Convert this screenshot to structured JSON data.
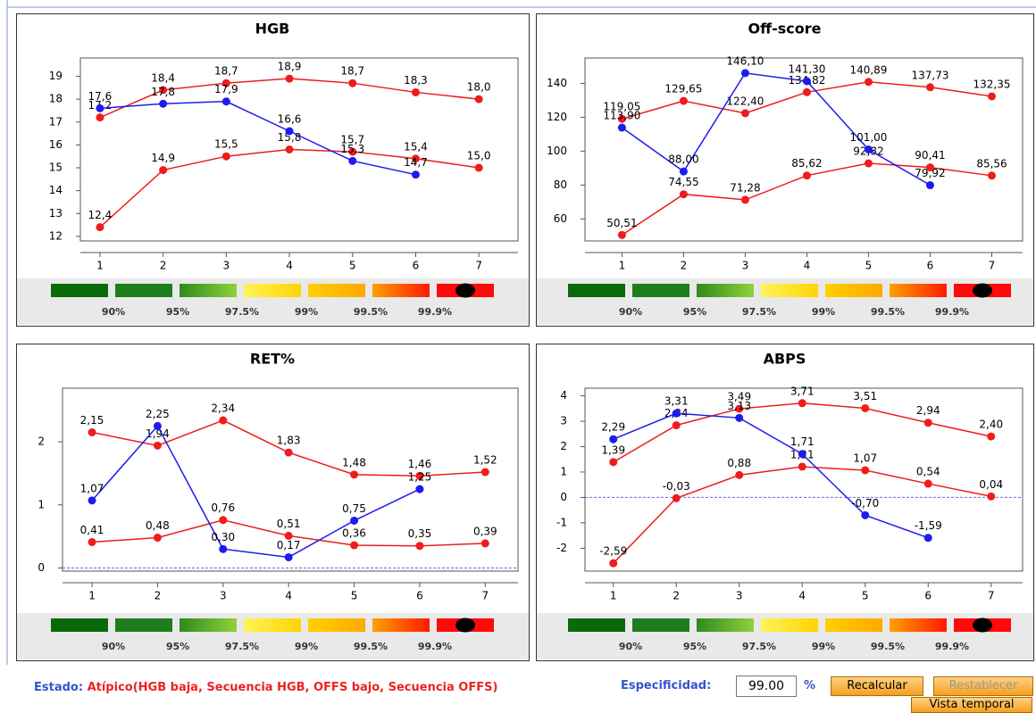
{
  "chart_data": [
    {
      "type": "line",
      "title": "HGB",
      "x": [
        1,
        2,
        3,
        4,
        5,
        6,
        7
      ],
      "xlim": [
        0.69,
        7.62
      ],
      "xticks": [
        1,
        2,
        3,
        4,
        5,
        6,
        7
      ],
      "ylim": [
        11.8,
        19.8
      ],
      "yticks": [
        12,
        13,
        14,
        15,
        16,
        17,
        18,
        19
      ],
      "series": [
        {
          "color": "#ee1c1c",
          "values": [
            17.2,
            18.4,
            18.7,
            18.9,
            18.7,
            18.3,
            18.0
          ],
          "value_labels": [
            "17,2",
            "18,4",
            "18,7",
            "18,9",
            "18,7",
            "18,3",
            "18,0"
          ]
        },
        {
          "color": "#ee1c1c",
          "values": [
            12.4,
            14.9,
            15.5,
            15.8,
            15.7,
            15.4,
            15.0
          ],
          "value_labels": [
            "12,4",
            "14,9",
            "15,5",
            "15,8",
            "15,7",
            "15,4",
            "15,0"
          ]
        },
        {
          "color": "#1c1cee",
          "values": [
            17.6,
            17.8,
            17.9,
            16.6,
            15.3,
            14.7,
            null
          ],
          "value_labels": [
            "17,6",
            "17,8",
            "17,9",
            "16,6",
            "15,3",
            "14,7",
            null
          ]
        }
      ]
    },
    {
      "type": "line",
      "title": "Off-score",
      "x": [
        1,
        2,
        3,
        4,
        5,
        6,
        7
      ],
      "xlim": [
        0.4,
        7.5
      ],
      "xticks": [
        1,
        2,
        3,
        4,
        5,
        6,
        7
      ],
      "ylim": [
        47,
        155
      ],
      "yticks": [
        60,
        80,
        100,
        120,
        140
      ],
      "series": [
        {
          "color": "#ee1c1c",
          "values": [
            119.05,
            129.65,
            122.4,
            134.82,
            140.89,
            137.73,
            132.35
          ],
          "value_labels": [
            "119,05",
            "129,65",
            "122,40",
            "134,82",
            "140,89",
            "137,73",
            "132,35"
          ]
        },
        {
          "color": "#ee1c1c",
          "values": [
            50.51,
            74.55,
            71.28,
            85.62,
            92.82,
            90.41,
            85.56
          ],
          "value_labels": [
            "50,51",
            "74,55",
            "71,28",
            "85,62",
            "92,82",
            "90,41",
            "85,56"
          ]
        },
        {
          "color": "#1c1cee",
          "values": [
            113.9,
            88.0,
            146.1,
            141.3,
            101.0,
            79.92,
            null
          ],
          "value_labels": [
            "113,90",
            "88,00",
            "146,10",
            "141,30",
            "101,00",
            "79,92",
            null
          ]
        }
      ]
    },
    {
      "type": "line",
      "title": "RET%",
      "x": [
        1,
        2,
        3,
        4,
        5,
        6,
        7
      ],
      "xlim": [
        0.55,
        7.5
      ],
      "xticks": [
        1,
        2,
        3,
        4,
        5,
        6,
        7
      ],
      "ylim": [
        -0.05,
        2.85
      ],
      "yticks": [
        0,
        1,
        2
      ],
      "hline": 0,
      "series": [
        {
          "color": "#ee1c1c",
          "values": [
            2.15,
            1.94,
            2.34,
            1.83,
            1.48,
            1.46,
            1.52
          ],
          "value_labels": [
            "2,15",
            "1,94",
            "2,34",
            "1,83",
            "1,48",
            "1,46",
            "1,52"
          ]
        },
        {
          "color": "#ee1c1c",
          "values": [
            0.41,
            0.48,
            0.76,
            0.51,
            0.36,
            0.35,
            0.39
          ],
          "value_labels": [
            "0,41",
            "0,48",
            "0,76",
            "0,51",
            "0,36",
            "0,35",
            "0,39"
          ]
        },
        {
          "color": "#1c1cee",
          "values": [
            1.07,
            2.25,
            0.3,
            0.17,
            0.75,
            1.25,
            null
          ],
          "value_labels": [
            "1,07",
            "2,25",
            "0,30",
            "0,17",
            "0,75",
            "1,25",
            null
          ]
        }
      ]
    },
    {
      "type": "line",
      "title": "ABPS",
      "x": [
        1,
        2,
        3,
        4,
        5,
        6,
        7
      ],
      "xlim": [
        0.55,
        7.5
      ],
      "xticks": [
        1,
        2,
        3,
        4,
        5,
        6,
        7
      ],
      "ylim": [
        -2.9,
        4.3
      ],
      "yticks": [
        -2,
        -1,
        0,
        1,
        2,
        3,
        4
      ],
      "hline": 0,
      "series": [
        {
          "color": "#ee1c1c",
          "values": [
            1.39,
            2.84,
            3.49,
            3.71,
            3.51,
            2.94,
            2.4
          ],
          "value_labels": [
            "1,39",
            "2,84",
            "3,49",
            "3,71",
            "3,51",
            "2,94",
            "2,40"
          ]
        },
        {
          "color": "#ee1c1c",
          "values": [
            -2.59,
            -0.03,
            0.88,
            1.21,
            1.07,
            0.54,
            0.04
          ],
          "value_labels": [
            "-2,59",
            "-0,03",
            "0,88",
            "1,21",
            "1,07",
            "0,54",
            "0,04"
          ]
        },
        {
          "color": "#1c1cee",
          "values": [
            2.29,
            3.31,
            3.13,
            1.71,
            -0.7,
            -1.59,
            null
          ],
          "value_labels": [
            "2,29",
            "3,31",
            "3,13",
            "1,71",
            "-0,70",
            "-1,59",
            null
          ]
        }
      ]
    }
  ],
  "scale_labels": [
    "90%",
    "95%",
    "97.5%",
    "99%",
    "99.5%",
    "99.9%"
  ],
  "footer": {
    "status_label": "Estado:",
    "status_text": "Atípico(HGB baja, Secuencia HGB, OFFS bajo, Secuencia OFFS)",
    "spec_label": "Especificidad:",
    "spec_value": "99.00",
    "spec_unit": "%",
    "buttons": [
      "Recalcular",
      "Restablecer",
      "Vista temporal"
    ]
  }
}
